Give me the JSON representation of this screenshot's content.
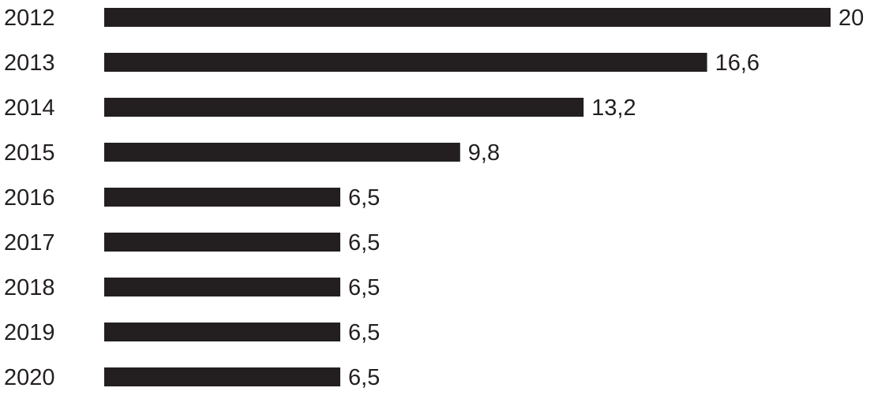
{
  "chart_data": {
    "type": "bar",
    "orientation": "horizontal",
    "categories": [
      "2012",
      "2013",
      "2014",
      "2015",
      "2016",
      "2017",
      "2018",
      "2019",
      "2020"
    ],
    "values": [
      20,
      16.6,
      13.2,
      9.8,
      6.5,
      6.5,
      6.5,
      6.5,
      6.5
    ],
    "value_labels": [
      "20",
      "16,6",
      "13,2",
      "9,8",
      "6,5",
      "6,5",
      "6,5",
      "6,5",
      "6,5"
    ],
    "color": "#231f20"
  }
}
